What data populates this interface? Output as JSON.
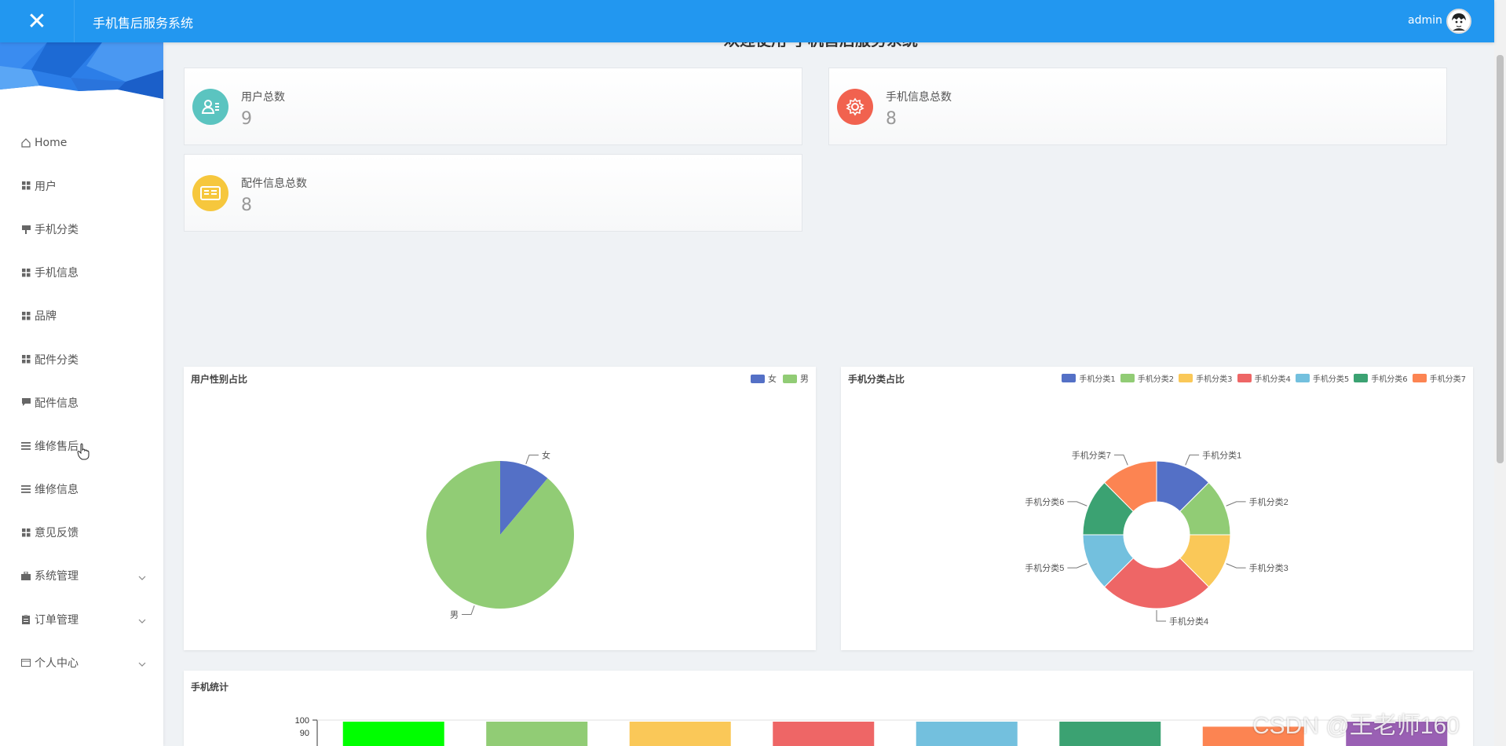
{
  "topbar": {
    "close_icon": "close-icon",
    "title": "手机售后服务系统",
    "username": "admin"
  },
  "sidebar": {
    "items": [
      {
        "label": "Home",
        "icon": "home-icon",
        "expandable": false
      },
      {
        "label": "用户",
        "icon": "grid-icon",
        "expandable": false
      },
      {
        "label": "手机分类",
        "icon": "flag-icon",
        "expandable": false
      },
      {
        "label": "手机信息",
        "icon": "grid-icon",
        "expandable": false
      },
      {
        "label": "品牌",
        "icon": "grid-icon",
        "expandable": false
      },
      {
        "label": "配件分类",
        "icon": "grid-icon",
        "expandable": false
      },
      {
        "label": "配件信息",
        "icon": "chat-icon",
        "expandable": false
      },
      {
        "label": "维修售后",
        "icon": "list-icon",
        "expandable": false
      },
      {
        "label": "维修信息",
        "icon": "list-icon",
        "expandable": false
      },
      {
        "label": "意见反馈",
        "icon": "grid-icon",
        "expandable": false
      },
      {
        "label": "系统管理",
        "icon": "briefcase-icon",
        "expandable": true
      },
      {
        "label": "订单管理",
        "icon": "clipboard-icon",
        "expandable": true
      },
      {
        "label": "个人中心",
        "icon": "card-icon",
        "expandable": true
      }
    ]
  },
  "main": {
    "welcome": "欢迎使用 手机售后服务系统",
    "stats": [
      {
        "label": "用户总数",
        "value": "9",
        "color": "#5bc4c0",
        "icon": "user-list-icon"
      },
      {
        "label": "手机信息总数",
        "value": "8",
        "color": "#f1624f",
        "icon": "gear-icon"
      },
      {
        "label": "配件信息总数",
        "value": "8",
        "color": "#f6c73d",
        "icon": "id-card-icon"
      }
    ]
  },
  "chart_data": [
    {
      "type": "pie",
      "title": "用户性别占比",
      "labels": [
        "女",
        "男"
      ],
      "values": [
        1,
        8
      ],
      "colors": [
        "#5470c6",
        "#91cc75"
      ]
    },
    {
      "type": "pie",
      "title": "手机分类占比",
      "donut": true,
      "labels": [
        "手机分类1",
        "手机分类2",
        "手机分类3",
        "手机分类4",
        "手机分类5",
        "手机分类6",
        "手机分类7"
      ],
      "values": [
        1,
        1,
        1,
        2,
        1,
        1,
        1
      ],
      "colors": [
        "#5470c6",
        "#91cc75",
        "#fac858",
        "#ee6666",
        "#73c0de",
        "#3ba272",
        "#fc8452"
      ]
    },
    {
      "type": "bar",
      "title": "手机统计",
      "categories": [
        "",
        "",
        "",
        "",
        "",
        "",
        "",
        ""
      ],
      "values": [
        100,
        100,
        100,
        100,
        100,
        100,
        96,
        100
      ],
      "colors": [
        "#00ff00",
        "#91cc75",
        "#fac858",
        "#ee6666",
        "#73c0de",
        "#3ba272",
        "#fc8452",
        "#9a60b4"
      ],
      "yticks": [
        "100",
        "90"
      ],
      "ylim": [
        0,
        100
      ]
    }
  ],
  "watermark": "CSDN @王老师160"
}
